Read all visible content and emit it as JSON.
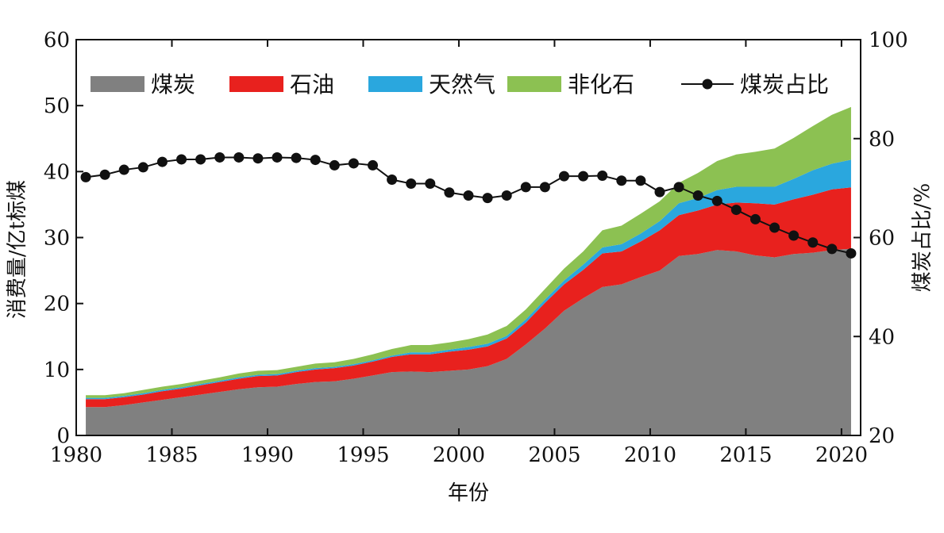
{
  "chart_data": {
    "type": "area",
    "stacked": true,
    "xlabel": "年份",
    "ylabel": "消费量/亿t标煤",
    "y2label": "煤炭占比/%",
    "xlim": [
      1980,
      2021
    ],
    "ylim": [
      0,
      60
    ],
    "y2lim": [
      20,
      100
    ],
    "x_ticks": [
      1980,
      1985,
      1990,
      1995,
      2000,
      2005,
      2010,
      2015,
      2020
    ],
    "y_ticks": [
      0,
      10,
      20,
      30,
      40,
      50,
      60
    ],
    "y2_ticks": [
      20,
      40,
      60,
      80,
      100
    ],
    "grid": false,
    "legend_position": "top",
    "x": [
      1980,
      1981,
      1982,
      1983,
      1984,
      1985,
      1986,
      1987,
      1988,
      1989,
      1990,
      1991,
      1992,
      1993,
      1994,
      1995,
      1996,
      1997,
      1998,
      1999,
      2000,
      2001,
      2002,
      2003,
      2004,
      2005,
      2006,
      2007,
      2008,
      2009,
      2010,
      2011,
      2012,
      2013,
      2014,
      2015,
      2016,
      2017,
      2018,
      2019,
      2020
    ],
    "series": [
      {
        "name": "煤炭",
        "kind": "area",
        "color": "#808080",
        "values": [
          4.3,
          4.3,
          4.6,
          5.0,
          5.4,
          5.8,
          6.2,
          6.6,
          7.0,
          7.3,
          7.4,
          7.8,
          8.1,
          8.2,
          8.6,
          9.1,
          9.6,
          9.7,
          9.6,
          9.8,
          10.0,
          10.5,
          11.6,
          13.8,
          16.2,
          18.9,
          20.8,
          22.5,
          22.9,
          24.0,
          25.0,
          27.2,
          27.5,
          28.1,
          27.9,
          27.3,
          27.0,
          27.5,
          27.7,
          28.1,
          28.3
        ]
      },
      {
        "name": "石油",
        "kind": "area",
        "color": "#e8211e",
        "values": [
          1.2,
          1.2,
          1.2,
          1.2,
          1.3,
          1.3,
          1.4,
          1.5,
          1.6,
          1.7,
          1.7,
          1.8,
          1.9,
          2.0,
          2.0,
          2.1,
          2.3,
          2.6,
          2.7,
          2.9,
          3.0,
          3.0,
          3.1,
          3.3,
          3.9,
          4.0,
          4.3,
          5.1,
          5.0,
          5.4,
          6.1,
          6.2,
          6.6,
          6.9,
          7.4,
          7.9,
          8.0,
          8.3,
          8.8,
          9.2,
          9.3
        ]
      },
      {
        "name": "天然气",
        "kind": "area",
        "color": "#2aa7de",
        "values": [
          0.2,
          0.2,
          0.2,
          0.2,
          0.2,
          0.2,
          0.2,
          0.2,
          0.2,
          0.2,
          0.2,
          0.2,
          0.2,
          0.2,
          0.2,
          0.2,
          0.2,
          0.3,
          0.3,
          0.3,
          0.4,
          0.4,
          0.4,
          0.5,
          0.5,
          0.6,
          0.8,
          0.9,
          1.1,
          1.2,
          1.4,
          1.8,
          1.9,
          2.2,
          2.4,
          2.5,
          2.7,
          3.1,
          3.7,
          3.9,
          4.2
        ]
      },
      {
        "name": "非化石",
        "kind": "area",
        "color": "#8cc152",
        "values": [
          0.4,
          0.4,
          0.4,
          0.5,
          0.5,
          0.5,
          0.5,
          0.5,
          0.6,
          0.6,
          0.6,
          0.6,
          0.7,
          0.7,
          0.8,
          0.9,
          1.0,
          1.1,
          1.1,
          1.1,
          1.2,
          1.4,
          1.5,
          1.5,
          1.6,
          1.8,
          2.0,
          2.6,
          2.8,
          3.0,
          3.0,
          3.1,
          3.8,
          4.4,
          4.9,
          5.3,
          5.8,
          6.2,
          6.7,
          7.4,
          8.0
        ]
      },
      {
        "name": "煤炭占比",
        "kind": "line-markers",
        "axis": "right",
        "color": "#111111",
        "values": [
          72.2,
          72.7,
          73.7,
          74.2,
          75.3,
          75.8,
          75.8,
          76.2,
          76.2,
          76.0,
          76.2,
          76.1,
          75.7,
          74.6,
          75.0,
          74.6,
          71.7,
          70.9,
          70.9,
          69.1,
          68.5,
          68.0,
          68.5,
          70.2,
          70.2,
          72.4,
          72.4,
          72.5,
          71.5,
          71.5,
          69.2,
          70.2,
          68.5,
          67.4,
          65.6,
          63.7,
          62.0,
          60.4,
          59.0,
          57.7,
          56.8
        ]
      }
    ]
  }
}
